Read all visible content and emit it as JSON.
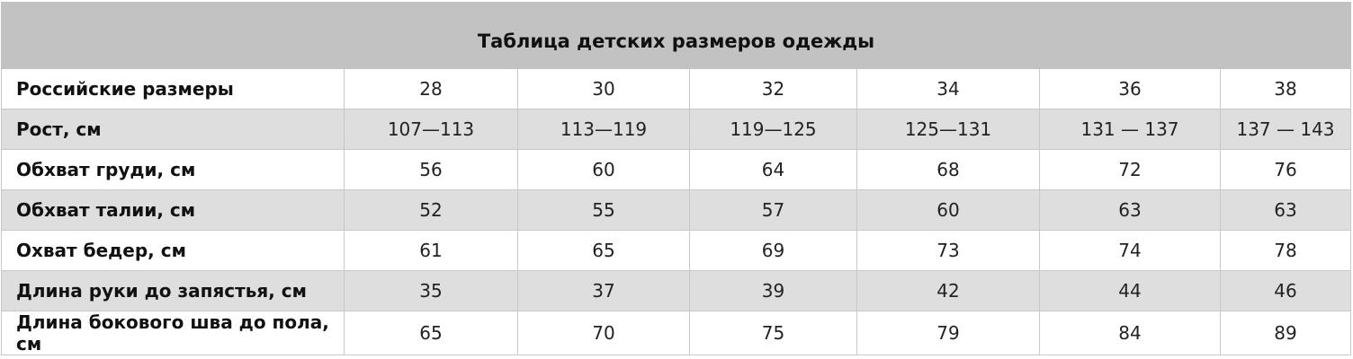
{
  "table": {
    "title": "Таблица детских размеров одежды",
    "rows": [
      {
        "label": "Российские размеры",
        "values": [
          "28",
          "30",
          "32",
          "34",
          "36",
          "38"
        ]
      },
      {
        "label": "Рост, см",
        "values": [
          "107—113",
          "113—119",
          "119—125",
          "125—131",
          "131 — 137",
          "137 — 143"
        ]
      },
      {
        "label": "Обхват груди, см",
        "values": [
          "56",
          "60",
          "64",
          "68",
          "72",
          "76"
        ]
      },
      {
        "label": "Обхват талии, см",
        "values": [
          "52",
          "55",
          "57",
          "60",
          "63",
          "63"
        ]
      },
      {
        "label": "Охват бедер, см",
        "values": [
          "61",
          "65",
          "69",
          "73",
          "74",
          "78"
        ]
      },
      {
        "label": "Длина руки до запястья, см",
        "values": [
          "35",
          "37",
          "39",
          "42",
          "44",
          "46"
        ]
      },
      {
        "label": "Длина бокового шва до пола, см",
        "values": [
          "65",
          "70",
          "75",
          "79",
          "84",
          "89"
        ]
      }
    ]
  },
  "colors": {
    "header_bg": "#c2c2c2",
    "row_alt_bg": "#dedede",
    "row_bg": "#ffffff",
    "border": "#c8c8c8"
  }
}
